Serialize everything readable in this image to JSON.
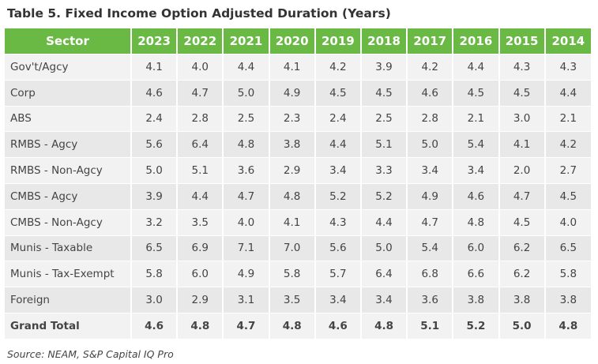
{
  "title": "Table 5. Fixed Income Option Adjusted Duration (Years)",
  "table": {
    "header_label": "Sector",
    "years": [
      "2023",
      "2022",
      "2021",
      "2020",
      "2019",
      "2018",
      "2017",
      "2016",
      "2015",
      "2014"
    ],
    "rows": [
      {
        "sector": "Gov't/Agcy",
        "values": [
          "4.1",
          "4.0",
          "4.4",
          "4.1",
          "4.2",
          "3.9",
          "4.2",
          "4.4",
          "4.3",
          "4.3"
        ]
      },
      {
        "sector": "Corp",
        "values": [
          "4.6",
          "4.7",
          "5.0",
          "4.9",
          "4.5",
          "4.5",
          "4.6",
          "4.5",
          "4.5",
          "4.4"
        ]
      },
      {
        "sector": "ABS",
        "values": [
          "2.4",
          "2.8",
          "2.5",
          "2.3",
          "2.4",
          "2.5",
          "2.8",
          "2.1",
          "3.0",
          "2.1"
        ]
      },
      {
        "sector": "RMBS - Agcy",
        "values": [
          "5.6",
          "6.4",
          "4.8",
          "3.8",
          "4.4",
          "5.1",
          "5.0",
          "5.4",
          "4.1",
          "4.2"
        ]
      },
      {
        "sector": "RMBS - Non-Agcy",
        "values": [
          "5.0",
          "5.1",
          "3.6",
          "2.9",
          "3.4",
          "3.3",
          "3.4",
          "3.4",
          "2.0",
          "2.7"
        ]
      },
      {
        "sector": "CMBS - Agcy",
        "values": [
          "3.9",
          "4.4",
          "4.7",
          "4.8",
          "5.2",
          "5.2",
          "4.9",
          "4.6",
          "4.7",
          "4.5"
        ]
      },
      {
        "sector": "CMBS - Non-Agcy",
        "values": [
          "3.2",
          "3.5",
          "4.0",
          "4.1",
          "4.3",
          "4.4",
          "4.7",
          "4.8",
          "4.5",
          "4.0"
        ]
      },
      {
        "sector": "Munis - Taxable",
        "values": [
          "6.5",
          "6.9",
          "7.1",
          "7.0",
          "5.6",
          "5.0",
          "5.4",
          "6.0",
          "6.2",
          "6.5"
        ]
      },
      {
        "sector": "Munis - Tax-Exempt",
        "values": [
          "5.8",
          "6.0",
          "4.9",
          "5.8",
          "5.7",
          "6.4",
          "6.8",
          "6.6",
          "6.2",
          "5.8"
        ]
      },
      {
        "sector": "Foreign",
        "values": [
          "3.0",
          "2.9",
          "3.1",
          "3.5",
          "3.4",
          "3.4",
          "3.6",
          "3.8",
          "3.8",
          "3.8"
        ]
      },
      {
        "sector": "Grand Total",
        "values": [
          "4.6",
          "4.8",
          "4.7",
          "4.8",
          "4.6",
          "4.8",
          "5.1",
          "5.2",
          "5.0",
          "4.8"
        ],
        "total": true
      }
    ]
  },
  "source": "Source: NEAM, S&P Capital IQ Pro",
  "colors": {
    "header_bg": "#6ab944",
    "row_light": "#f2f2f2",
    "row_dark": "#e8e8e8"
  }
}
